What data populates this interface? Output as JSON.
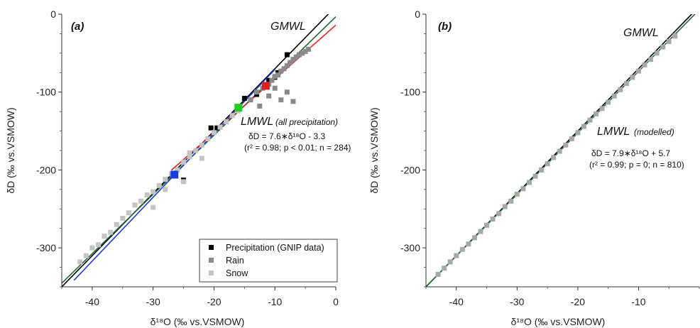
{
  "chart_data": [
    {
      "type": "scatter",
      "panel_label": "(a)",
      "xlabel": "δ¹⁸O (‰ vs.VSMOW)",
      "ylabel": "δD (‰ vs.VSMOW)",
      "xlim": [
        -45,
        0
      ],
      "ylim": [
        -350,
        0
      ],
      "x_ticks": [
        -40,
        -30,
        -20,
        -10,
        0
      ],
      "y_ticks": [
        0,
        -100,
        -200,
        -300
      ],
      "series": [
        {
          "name": "Precipitation (GNIP data)",
          "color": "#000000",
          "marker": "square",
          "x": [
            -25,
            -20.5,
            -19.5,
            -15,
            -13,
            -11,
            -10,
            -9.5,
            -8
          ],
          "y": [
            -213,
            -146,
            -146,
            -108,
            -103,
            -85,
            -81,
            -75,
            -52
          ]
        },
        {
          "name": "Rain",
          "color": "#8a8a8a",
          "marker": "square",
          "x": [
            -14,
            -13,
            -12,
            -11.5,
            -11,
            -10.5,
            -10,
            -9.5,
            -9,
            -8.5,
            -8,
            -7.5,
            -7,
            -6.5,
            -6,
            -5.5,
            -5,
            -4.5,
            -9,
            -8,
            -7,
            -10,
            -11,
            -12.5
          ],
          "y": [
            -110,
            -100,
            -95,
            -92,
            -90,
            -85,
            -80,
            -78,
            -73,
            -70,
            -66,
            -62,
            -58,
            -55,
            -52,
            -50,
            -48,
            -45,
            -110,
            -100,
            -112,
            -95,
            -105,
            -118
          ]
        },
        {
          "name": "Snow",
          "color": "#c4c4c4",
          "marker": "square",
          "x": [
            -42,
            -41,
            -40,
            -39,
            -38,
            -37,
            -36,
            -35,
            -34,
            -33,
            -32,
            -31,
            -30,
            -29,
            -28,
            -27,
            -26,
            -25,
            -24,
            -23,
            -22,
            -21,
            -20,
            -19,
            -18,
            -17,
            -16,
            -28,
            -30,
            -25,
            -24,
            -22
          ],
          "y": [
            -318,
            -310,
            -300,
            -296,
            -285,
            -280,
            -270,
            -262,
            -255,
            -245,
            -240,
            -232,
            -228,
            -220,
            -212,
            -205,
            -200,
            -190,
            -183,
            -175,
            -168,
            -160,
            -152,
            -145,
            -138,
            -130,
            -124,
            -225,
            -248,
            -215,
            -178,
            -185
          ]
        }
      ],
      "lines": [
        {
          "name": "GMWL",
          "color": "#000000",
          "slope": 8,
          "intercept": 10
        },
        {
          "name": "LMWL",
          "color": "#1f6b2f",
          "slope": 7.6,
          "intercept": -3.3
        },
        {
          "name": "rain fit",
          "color": "#e02020",
          "slope": 6.9,
          "intercept": -14,
          "x_range": [
            -27,
            0
          ]
        },
        {
          "name": "snow fit",
          "color": "#1a3ddd",
          "slope": 8.2,
          "intercept": 11,
          "x_range": [
            -43,
            -10
          ]
        }
      ],
      "highlights": [
        {
          "x": -26.5,
          "y": -206,
          "color": "#1a3ddd"
        },
        {
          "x": -16,
          "y": -120,
          "color": "#22cc22"
        },
        {
          "x": -11.5,
          "y": -92,
          "color": "#e02020"
        }
      ],
      "annotations": {
        "gmwl": "GMWL",
        "lmwl": "LMWL",
        "lmwl_sub": "(all precipitation)",
        "equation": "δD = 7.6∗δ¹⁸O - 3.3",
        "stats": "(r² = 0.98; p < 0.01; n = 284)"
      },
      "legend": {
        "position": "bottom-right",
        "entries": [
          "Precipitation (GNIP data)",
          "Rain",
          "Snow"
        ]
      }
    },
    {
      "type": "scatter",
      "panel_label": "(b)",
      "xlabel": "δ¹⁸O (‰ vs.VSMOW)",
      "ylabel": "δD (‰ vs.VSMOW)",
      "xlim": [
        -45,
        0
      ],
      "ylim": [
        -350,
        0
      ],
      "x_ticks": [
        -40,
        -30,
        -20,
        -10
      ],
      "y_ticks": [
        0,
        -100,
        -200,
        -300
      ],
      "series": [
        {
          "name": "modelled",
          "color": "#a8a8a8",
          "marker": "square",
          "x": [
            -43,
            -42,
            -41,
            -40,
            -39,
            -38,
            -37,
            -36,
            -35,
            -34,
            -33,
            -32,
            -31,
            -30,
            -29,
            -28,
            -27,
            -26,
            -25,
            -24,
            -23,
            -22,
            -21,
            -20,
            -19,
            -18,
            -17,
            -16,
            -15,
            -14,
            -13,
            -12,
            -11,
            -10,
            -9,
            -8,
            -7,
            -6,
            -5,
            -4
          ],
          "y": [
            -334,
            -326,
            -318,
            -310,
            -302,
            -295,
            -287,
            -279,
            -271,
            -263,
            -256,
            -247,
            -240,
            -231,
            -224,
            -216,
            -208,
            -200,
            -192,
            -184,
            -176,
            -168,
            -160,
            -152,
            -144,
            -136,
            -128,
            -121,
            -113,
            -105,
            -97,
            -89,
            -81,
            -73,
            -65,
            -58,
            -50,
            -42,
            -35,
            -28
          ]
        }
      ],
      "lines": [
        {
          "name": "GMWL",
          "color": "#000000",
          "slope": 8,
          "intercept": 10
        },
        {
          "name": "LMWL",
          "color": "#1f6b2f",
          "slope": 7.9,
          "intercept": 5.7
        }
      ],
      "annotations": {
        "gmwl": "GMWL",
        "lmwl": "LMWL",
        "lmwl_sub": "(modelled)",
        "equation": "δD = 7.9∗δ¹⁸O + 5.7",
        "stats": "(r² = 0.99; p = 0; n = 810)"
      }
    }
  ]
}
